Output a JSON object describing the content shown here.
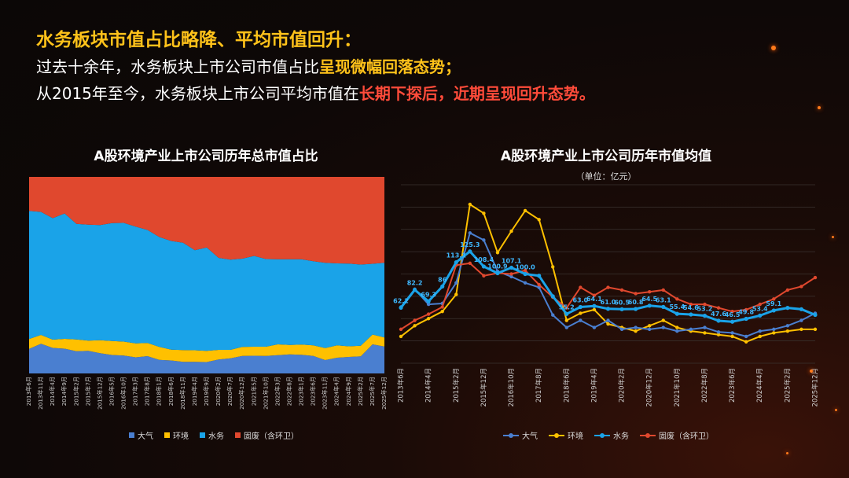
{
  "header": {
    "title": "水务板块市值占比略降、平均市值回升：",
    "line1_prefix": "过去十余年，水务板块上市公司市值占比",
    "line1_highlight": "呈现微幅回落态势；",
    "line2_prefix": "从2015年至今，水务板块上市公司平均市值在",
    "line2_highlight": "长期下探后，近期呈现回升态势。"
  },
  "colors": {
    "air": "#4a7fd0",
    "env": "#ffc000",
    "water": "#1aa3e8",
    "solid": "#e0482e",
    "highlight_yellow": "#ffc21a",
    "highlight_red": "#ff4b3a"
  },
  "chart_data": [
    {
      "type": "area",
      "stacked_percent": true,
      "title": "A股环境产业上市公司历年总市值占比",
      "x": [
        "2013年6月",
        "2013年11月",
        "2014年4月",
        "2014年9月",
        "2015年2月",
        "2015年7月",
        "2015年12月",
        "2016年5月",
        "2016年10月",
        "2017年3月",
        "2017年8月",
        "2018年1月",
        "2018年6月",
        "2018年11月",
        "2019年4月",
        "2019年9月",
        "2020年2月",
        "2020年7月",
        "2020年12月",
        "2021年5月",
        "2021年10月",
        "2022年3月",
        "2022年8月",
        "2023年1月",
        "2023年6月",
        "2023年11月",
        "2024年4月",
        "2024年9月",
        "2025年2月",
        "2025年7月",
        "2025年12月"
      ],
      "ylim": [
        0,
        100
      ],
      "series": [
        {
          "name": "大气",
          "values": [
            12.5,
            15.1,
            13.0,
            12.6,
            11.3,
            11.5,
            10.3,
            9.4,
            9.1,
            8.2,
            8.8,
            6.9,
            6.6,
            5.9,
            5.9,
            5.8,
            7.1,
            7.7,
            8.9,
            9.0,
            8.9,
            9.3,
            9.7,
            9.5,
            8.9,
            6.8,
            8.0,
            8.4,
            8.7,
            14.8,
            13.7
          ]
        },
        {
          "name": "环境",
          "values": [
            5.0,
            4.5,
            4.2,
            5.0,
            6.0,
            5.2,
            6.6,
            7.1,
            7.1,
            7.1,
            6.7,
            6.6,
            5.5,
            6.0,
            5.9,
            5.7,
            4.9,
            4.3,
            4.6,
            4.6,
            4.7,
            5.5,
            4.8,
            5.2,
            5.4,
            6.1,
            6.3,
            5.4,
            5.4,
            5.0,
            4.6
          ]
        },
        {
          "name": "水务",
          "values": [
            65.2,
            62.6,
            61.8,
            63.8,
            58.8,
            59.0,
            58.6,
            60.0,
            60.4,
            59.4,
            57.5,
            55.9,
            55.3,
            54.6,
            50.9,
            52.6,
            46.8,
            45.9,
            44.9,
            46.2,
            44.6,
            43.3,
            43.6,
            43.4,
            42.8,
            43.4,
            41.7,
            42.1,
            41.3,
            36.0,
            38.0
          ]
        },
        {
          "name": "固废（含环卫）",
          "values": [
            17.3,
            17.8,
            21.0,
            18.6,
            23.9,
            24.3,
            24.5,
            23.5,
            23.4,
            25.3,
            27.0,
            30.6,
            32.6,
            33.5,
            37.3,
            35.9,
            41.2,
            42.1,
            41.6,
            40.2,
            41.8,
            41.9,
            41.9,
            41.9,
            42.9,
            43.7,
            44.0,
            44.1,
            44.6,
            44.2,
            43.7
          ]
        }
      ]
    },
    {
      "type": "line",
      "title": "A股环境产业上市公司历年市值均值",
      "subtitle": "（单位：亿元）",
      "x": [
        "2013年6月",
        "2013年11月",
        "2014年4月",
        "2014年9月",
        "2015年2月",
        "2015年7月",
        "2015年12月",
        "2016年5月",
        "2016年10月",
        "2017年3月",
        "2017年8月",
        "2018年1月",
        "2018年6月",
        "2018年11月",
        "2019年4月",
        "2019年9月",
        "2020年2月",
        "2020年7月",
        "2020年12月",
        "2021年5月",
        "2021年10月",
        "2022年3月",
        "2022年8月",
        "2023年1月",
        "2023年6月",
        "2023年11月",
        "2024年4月",
        "2024年9月",
        "2025年2月",
        "2025年7月",
        "2025年12月"
      ],
      "ylim": [
        0,
        200
      ],
      "series": [
        {
          "name": "大气",
          "values": [
            63,
            83,
            66,
            67,
            90,
            146,
            138,
            103,
            97,
            90,
            85,
            54,
            40,
            48,
            40,
            48,
            38,
            40,
            38,
            40,
            36,
            38,
            40,
            35,
            34,
            30,
            36,
            38,
            42,
            48,
            56
          ]
        },
        {
          "name": "环境",
          "values": [
            30,
            42,
            50,
            58,
            77,
            178,
            168,
            124,
            148,
            171,
            161,
            108,
            48,
            56,
            60,
            44,
            40,
            36,
            42,
            48,
            40,
            36,
            34,
            32,
            30,
            24,
            30,
            34,
            36,
            38,
            38
          ]
        },
        {
          "name": "水务",
          "values": [
            62.2,
            82.2,
            69.3,
            86,
            113.1,
            125.3,
            108.4,
            100.9,
            107.1,
            100.0,
            98,
            75,
            55.2,
            63.0,
            64.1,
            61.0,
            60.5,
            60.8,
            64.5,
            63.1,
            55.4,
            54.6,
            53.2,
            47.6,
            46.5,
            49.8,
            53.4,
            59.1,
            62,
            60.5,
            54.2
          ]
        },
        {
          "name": "固废（含环卫）",
          "values": [
            38,
            48,
            55,
            63,
            110,
            112,
            98,
            101,
            100,
            104,
            88,
            74,
            62,
            85,
            76,
            85,
            82,
            78,
            80,
            82,
            72,
            66,
            66,
            62,
            58,
            60,
            66,
            72,
            82,
            86,
            96
          ]
        }
      ],
      "data_labels_series": "水务",
      "data_labels": [
        "62.2",
        "82.2",
        "69.3",
        "86",
        "113.1",
        "125.3",
        "108.4",
        "100.9",
        "107.1",
        "100.0",
        "",
        "",
        "55.2",
        "63.0",
        "64.1",
        "61.0",
        "60.5",
        "60.8",
        "64.5",
        "63.1",
        "55.4",
        "54.6",
        "53.2",
        "47.6",
        "46.5",
        "49.8",
        "53.4",
        "59.1"
      ]
    }
  ]
}
